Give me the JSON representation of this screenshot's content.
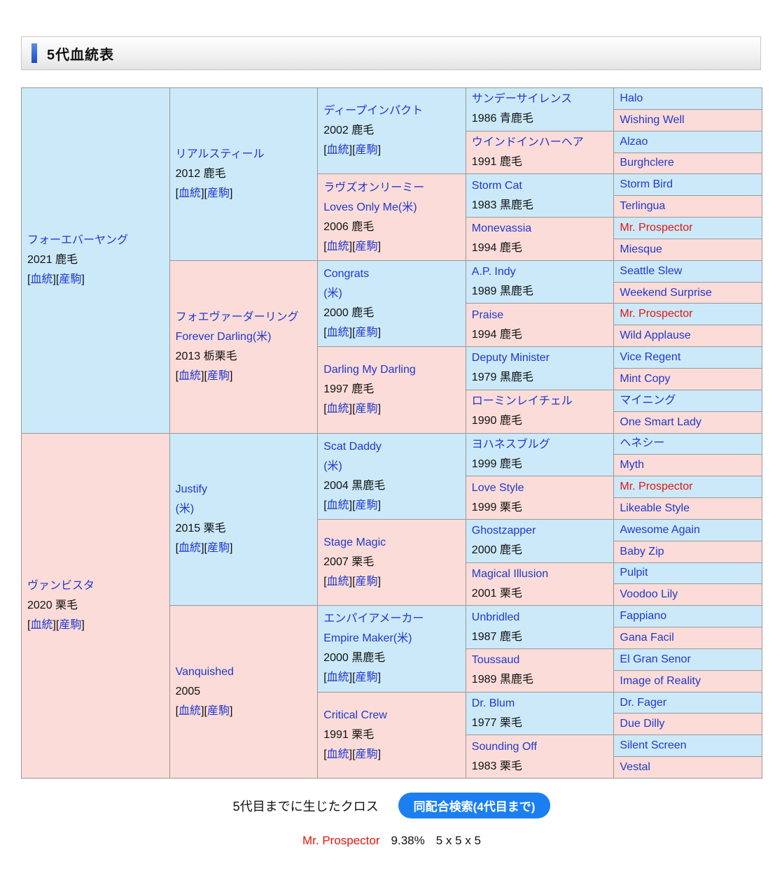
{
  "header": {
    "title": "5代血統表"
  },
  "colors": {
    "male_cell_bg": "#cbe9f9",
    "female_cell_bg": "#fbdcd8",
    "grid_border": "#999999",
    "link_blue": "#2038cf",
    "cross_red": "#e8150b",
    "button_blue": "#1b7ff2",
    "accent_bar_blue": "#1d4fc0"
  },
  "pedigree": {
    "link_labels": [
      "血統",
      "産駒"
    ],
    "gen1": [
      {
        "name_lines": [
          "フォーエバーヤング"
        ],
        "meta": "2021 鹿毛",
        "links": true,
        "sex": "m"
      },
      {
        "name_lines": [
          "ヴァンビスタ"
        ],
        "meta": "2020 栗毛",
        "links": true,
        "sex": "f"
      }
    ],
    "gen2": [
      {
        "name_lines": [
          "リアルスティール"
        ],
        "meta": "2012 鹿毛",
        "links": true,
        "sex": "m"
      },
      {
        "name_lines": [
          "フォエヴァーダーリング",
          "Forever Darling(米)"
        ],
        "meta": "2013 栃栗毛",
        "links": true,
        "sex": "f"
      },
      {
        "name_lines": [
          "Justify",
          "(米)"
        ],
        "meta": "2015 栗毛",
        "links": true,
        "sex": "m"
      },
      {
        "name_lines": [
          "Vanquished"
        ],
        "meta": "2005",
        "links": true,
        "sex": "f"
      }
    ],
    "gen3": [
      {
        "name_lines": [
          "ディープインパクト"
        ],
        "meta": "2002 鹿毛",
        "links": true,
        "sex": "m"
      },
      {
        "name_lines": [
          "ラヴズオンリーミー",
          "Loves Only Me(米)"
        ],
        "meta": "2006 鹿毛",
        "links": true,
        "sex": "f"
      },
      {
        "name_lines": [
          "Congrats",
          "(米)"
        ],
        "meta": "2000 鹿毛",
        "links": true,
        "sex": "m"
      },
      {
        "name_lines": [
          "Darling My Darling"
        ],
        "meta": "1997 鹿毛",
        "links": true,
        "sex": "f"
      },
      {
        "name_lines": [
          "Scat Daddy",
          "(米)"
        ],
        "meta": "2004 黒鹿毛",
        "links": true,
        "sex": "m"
      },
      {
        "name_lines": [
          "Stage Magic"
        ],
        "meta": "2007 栗毛",
        "links": true,
        "sex": "f"
      },
      {
        "name_lines": [
          "エンパイアメーカー",
          "Empire Maker(米)"
        ],
        "meta": "2000 黒鹿毛",
        "links": true,
        "sex": "m"
      },
      {
        "name_lines": [
          "Critical Crew"
        ],
        "meta": "1991 栗毛",
        "links": true,
        "sex": "f"
      }
    ],
    "gen4": [
      {
        "name_lines": [
          "サンデーサイレンス"
        ],
        "meta": "1986 青鹿毛",
        "links": false,
        "sex": "m"
      },
      {
        "name_lines": [
          "ウインドインハーヘア"
        ],
        "meta": "1991 鹿毛",
        "links": false,
        "sex": "f"
      },
      {
        "name_lines": [
          "Storm Cat"
        ],
        "meta": "1983 黒鹿毛",
        "links": false,
        "sex": "m"
      },
      {
        "name_lines": [
          "Monevassia"
        ],
        "meta": "1994 鹿毛",
        "links": false,
        "sex": "f"
      },
      {
        "name_lines": [
          "A.P. Indy"
        ],
        "meta": "1989 黒鹿毛",
        "links": false,
        "sex": "m"
      },
      {
        "name_lines": [
          "Praise"
        ],
        "meta": "1994 鹿毛",
        "links": false,
        "sex": "f"
      },
      {
        "name_lines": [
          "Deputy Minister"
        ],
        "meta": "1979 黒鹿毛",
        "links": false,
        "sex": "m"
      },
      {
        "name_lines": [
          "ローミンレイチェル"
        ],
        "meta": "1990 鹿毛",
        "links": false,
        "sex": "f"
      },
      {
        "name_lines": [
          "ヨハネスブルグ"
        ],
        "meta": "1999 鹿毛",
        "links": false,
        "sex": "m"
      },
      {
        "name_lines": [
          "Love Style"
        ],
        "meta": "1999 栗毛",
        "links": false,
        "sex": "f"
      },
      {
        "name_lines": [
          "Ghostzapper"
        ],
        "meta": "2000 鹿毛",
        "links": false,
        "sex": "m"
      },
      {
        "name_lines": [
          "Magical Illusion"
        ],
        "meta": "2001 栗毛",
        "links": false,
        "sex": "f"
      },
      {
        "name_lines": [
          "Unbridled"
        ],
        "meta": "1987 鹿毛",
        "links": false,
        "sex": "m"
      },
      {
        "name_lines": [
          "Toussaud"
        ],
        "meta": "1989 黒鹿毛",
        "links": false,
        "sex": "f"
      },
      {
        "name_lines": [
          "Dr. Blum"
        ],
        "meta": "1977 栗毛",
        "links": false,
        "sex": "m"
      },
      {
        "name_lines": [
          "Sounding Off"
        ],
        "meta": "1983 栗毛",
        "links": false,
        "sex": "f"
      }
    ],
    "gen5": [
      {
        "name_lines": [
          "Halo"
        ],
        "links": false,
        "sex": "m"
      },
      {
        "name_lines": [
          "Wishing Well"
        ],
        "links": false,
        "sex": "f"
      },
      {
        "name_lines": [
          "Alzao"
        ],
        "links": false,
        "sex": "m"
      },
      {
        "name_lines": [
          "Burghclere"
        ],
        "links": false,
        "sex": "f"
      },
      {
        "name_lines": [
          "Storm Bird"
        ],
        "links": false,
        "sex": "m"
      },
      {
        "name_lines": [
          "Terlingua"
        ],
        "links": false,
        "sex": "f"
      },
      {
        "name_lines": [
          "Mr. Prospector"
        ],
        "links": false,
        "sex": "m",
        "red": true
      },
      {
        "name_lines": [
          "Miesque"
        ],
        "links": false,
        "sex": "f"
      },
      {
        "name_lines": [
          "Seattle Slew"
        ],
        "links": false,
        "sex": "m"
      },
      {
        "name_lines": [
          "Weekend Surprise"
        ],
        "links": false,
        "sex": "f"
      },
      {
        "name_lines": [
          "Mr. Prospector"
        ],
        "links": false,
        "sex": "m",
        "red": true
      },
      {
        "name_lines": [
          "Wild Applause"
        ],
        "links": false,
        "sex": "f"
      },
      {
        "name_lines": [
          "Vice Regent"
        ],
        "links": false,
        "sex": "m"
      },
      {
        "name_lines": [
          "Mint Copy"
        ],
        "links": false,
        "sex": "f"
      },
      {
        "name_lines": [
          "マイニング"
        ],
        "links": false,
        "sex": "m"
      },
      {
        "name_lines": [
          "One Smart Lady"
        ],
        "links": false,
        "sex": "f"
      },
      {
        "name_lines": [
          "ヘネシー"
        ],
        "links": false,
        "sex": "m"
      },
      {
        "name_lines": [
          "Myth"
        ],
        "links": false,
        "sex": "f"
      },
      {
        "name_lines": [
          "Mr. Prospector"
        ],
        "links": false,
        "sex": "m",
        "red": true
      },
      {
        "name_lines": [
          "Likeable Style"
        ],
        "links": false,
        "sex": "f"
      },
      {
        "name_lines": [
          "Awesome Again"
        ],
        "links": false,
        "sex": "m"
      },
      {
        "name_lines": [
          "Baby Zip"
        ],
        "links": false,
        "sex": "f"
      },
      {
        "name_lines": [
          "Pulpit"
        ],
        "links": false,
        "sex": "m"
      },
      {
        "name_lines": [
          "Voodoo Lily"
        ],
        "links": false,
        "sex": "f"
      },
      {
        "name_lines": [
          "Fappiano"
        ],
        "links": false,
        "sex": "m"
      },
      {
        "name_lines": [
          "Gana Facil"
        ],
        "links": false,
        "sex": "f"
      },
      {
        "name_lines": [
          "El Gran Senor"
        ],
        "links": false,
        "sex": "m"
      },
      {
        "name_lines": [
          "Image of Reality"
        ],
        "links": false,
        "sex": "f"
      },
      {
        "name_lines": [
          "Dr. Fager"
        ],
        "links": false,
        "sex": "m"
      },
      {
        "name_lines": [
          "Due Dilly"
        ],
        "links": false,
        "sex": "f"
      },
      {
        "name_lines": [
          "Silent Screen"
        ],
        "links": false,
        "sex": "m"
      },
      {
        "name_lines": [
          "Vestal"
        ],
        "links": false,
        "sex": "f"
      }
    ]
  },
  "footer": {
    "cross_caption": "5代目までに生じたクロス",
    "search_button_label": "同配合検索(4代目まで)",
    "cross": {
      "name": "Mr. Prospector",
      "percent": "9.38%",
      "pattern": "5 x 5 x 5"
    }
  }
}
